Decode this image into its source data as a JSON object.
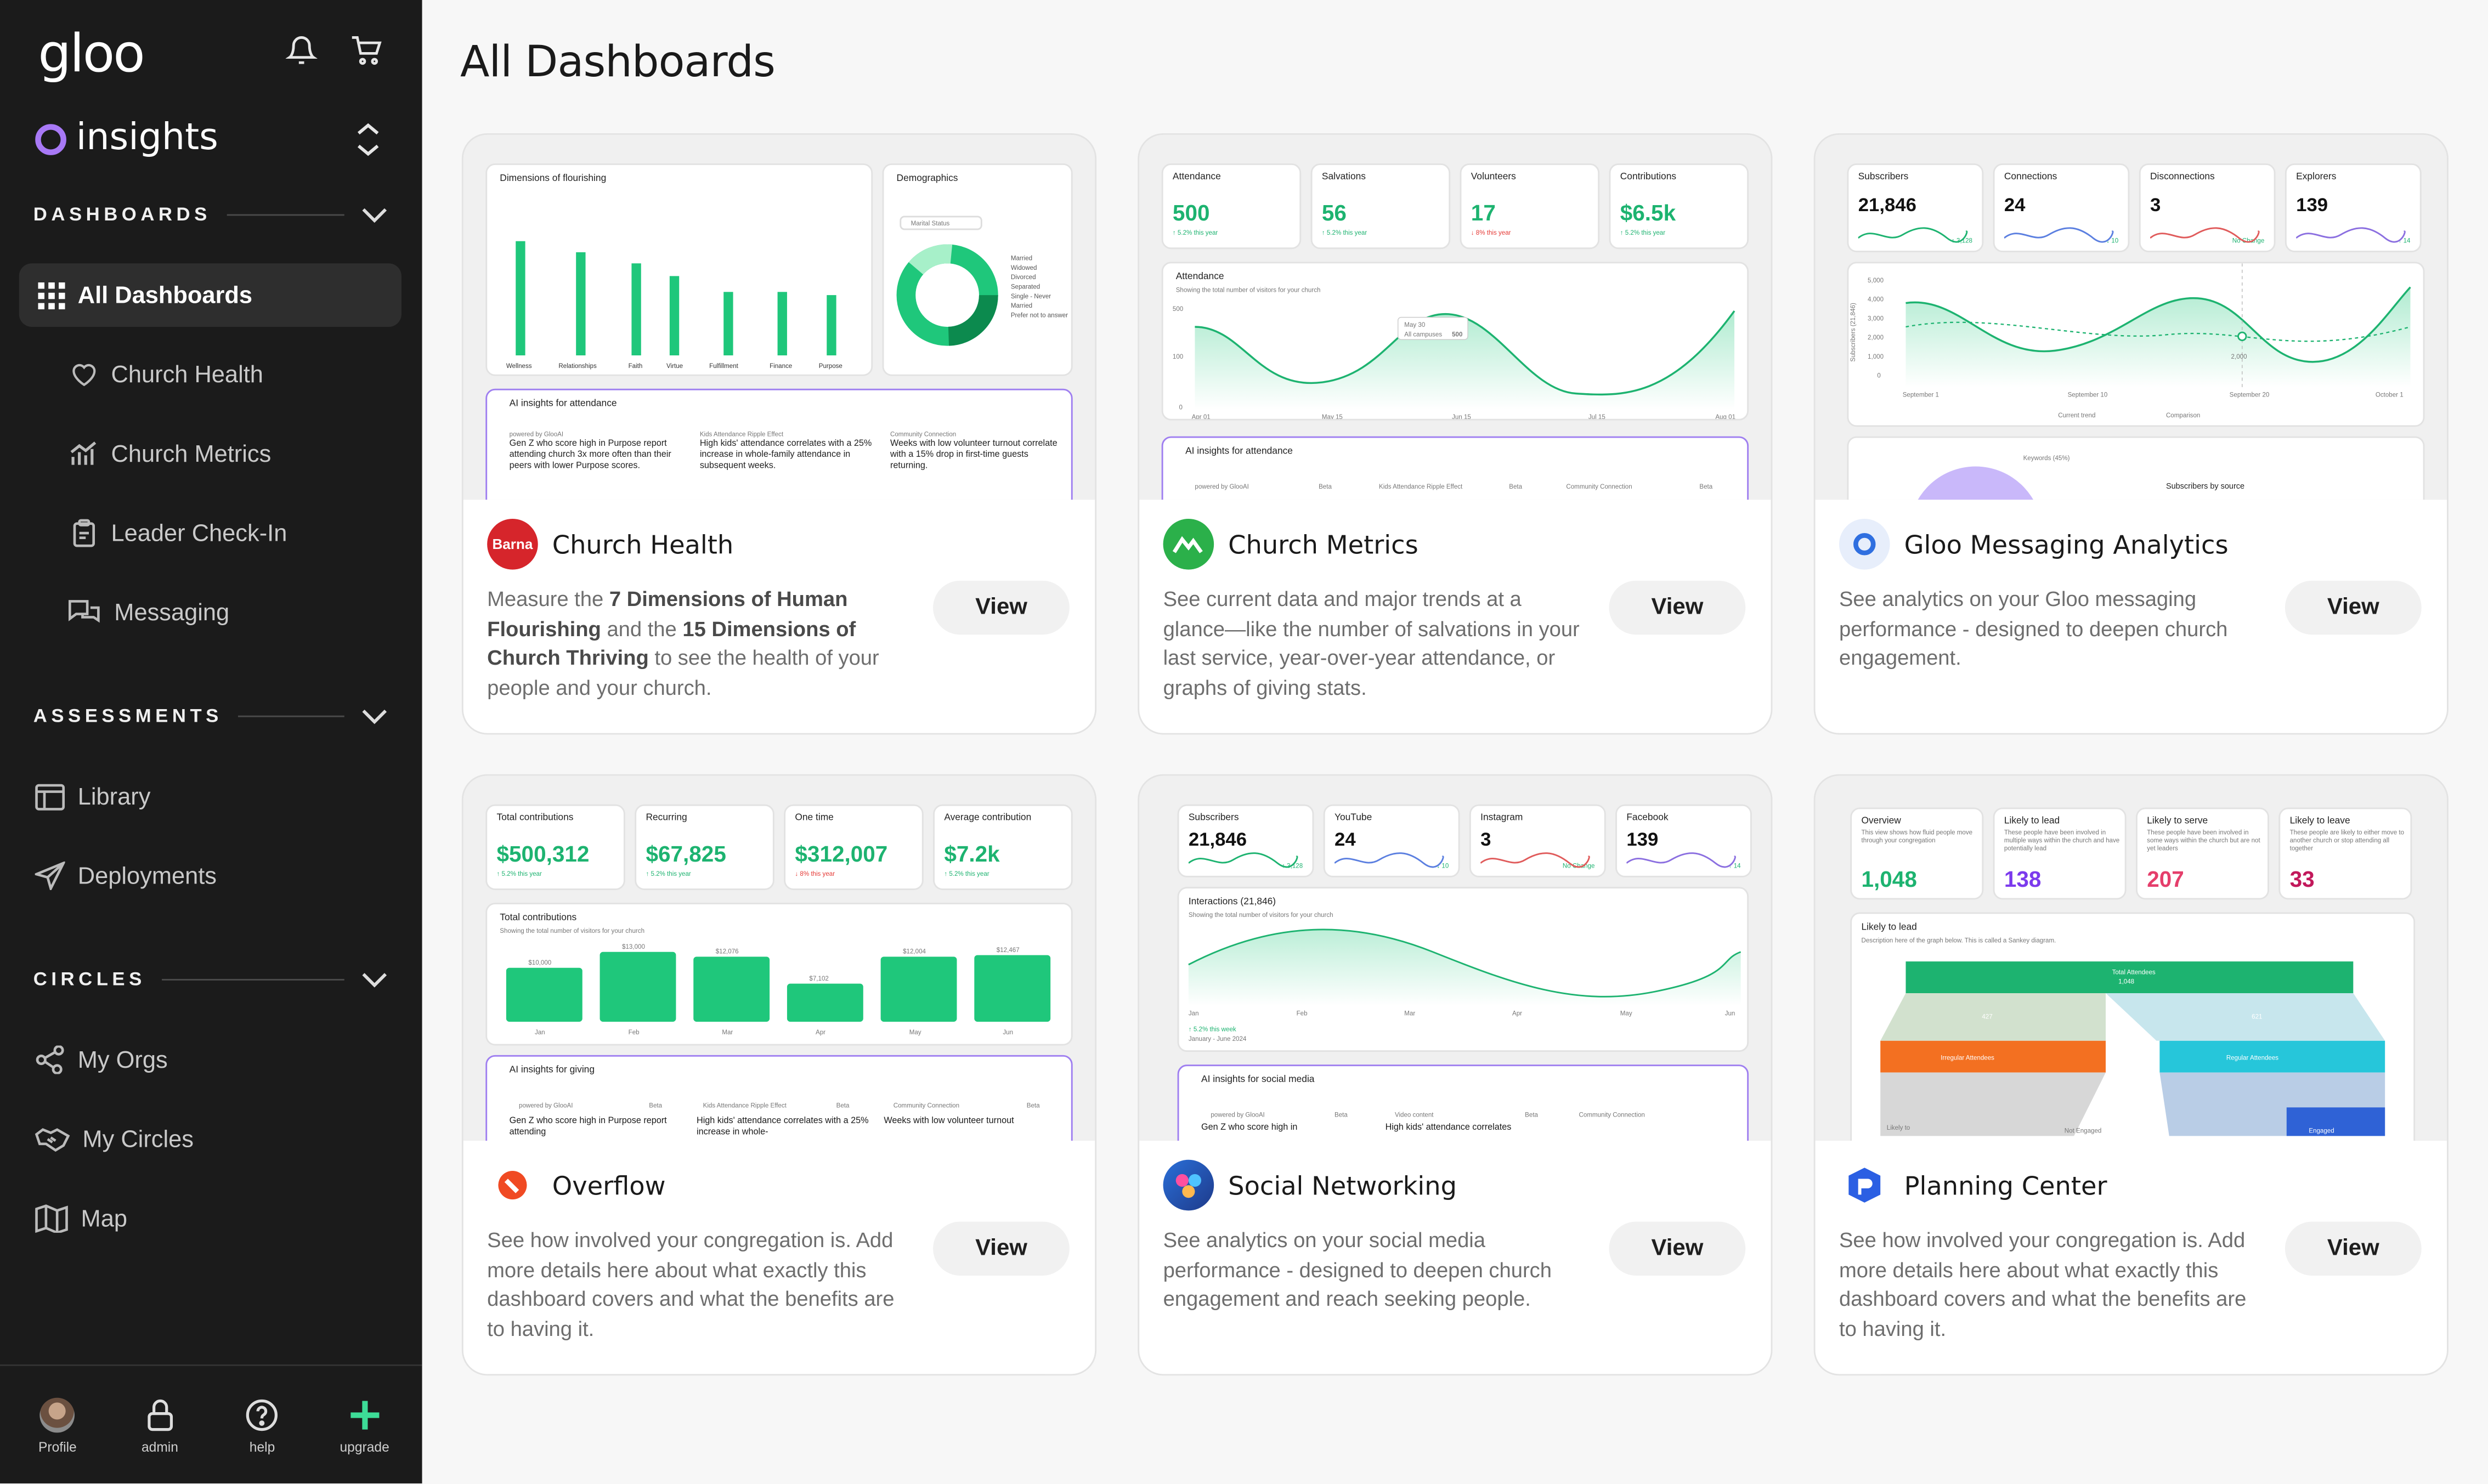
{
  "brand": {
    "logo": "gloo",
    "product": "insights"
  },
  "sidebar": {
    "sections": {
      "dashboards": "DASHBOARDS",
      "assessments": "ASSESSMENTS",
      "circles": "CIRCLES"
    },
    "dashboards": [
      "All Dashboards",
      "Church Health",
      "Church Metrics",
      "Leader Check-In",
      "Messaging"
    ],
    "assessments": [
      "Library",
      "Deployments"
    ],
    "circles": [
      "My Orgs",
      "My Circles",
      "Map"
    ],
    "footer": [
      "Profile",
      "admin",
      "help",
      "upgrade"
    ]
  },
  "page": {
    "title": "All Dashboards"
  },
  "cards": [
    {
      "name": "Church Health",
      "icon_text": "Barna",
      "button": "View",
      "desc": [
        "Measure the ",
        "7 Dimensions of Human Flourishing",
        " and the ",
        "15 Dimensions of Church Thriving",
        " to see the health of your people and your church."
      ]
    },
    {
      "name": "Church Metrics",
      "button": "View",
      "desc": "See current data and major trends at a glance—like the number of salvations in your last service, year-over-year attendance, or graphs of giving stats."
    },
    {
      "name": "Gloo Messaging Analytics",
      "button": "View",
      "desc": "See analytics on your Gloo messaging performance - designed to deepen church engagement."
    },
    {
      "name": "Overflow",
      "button": "View",
      "desc": "See how involved your congregation is. Add more details here about what exactly this dashboard covers and what the benefits are to having it."
    },
    {
      "name": "Social Networking",
      "button": "View",
      "desc": "See analytics on your social media performance - designed to deepen church engagement and reach seeking people."
    },
    {
      "name": "Planning Center",
      "button": "View",
      "desc": "See how involved your congregation is. Add more details here about what exactly this dashboard covers and what the benefits are to having it."
    }
  ],
  "previews": {
    "flourishing": {
      "title": "Dimensions of flourishing",
      "demographics": "Demographics",
      "marital": "Marital Status",
      "legend": [
        "Married",
        "Widowed",
        "Divorced",
        "Separated",
        "Single - Never Married",
        "Prefer not to answer"
      ],
      "ai_title": "AI insights for attendance",
      "ai_items": [
        {
          "label": "powered by GlooAI",
          "badge": "Beta",
          "text": "Gen Z who score high in Purpose report attending church 3x more often than their peers with lower Purpose scores."
        },
        {
          "label": "Kids Attendance Ripple Effect",
          "badge": "Beta",
          "text": "High kids' attendance correlates with a 25% increase in whole-family attendance in subsequent weeks."
        },
        {
          "label": "Community Connection",
          "badge": "Beta",
          "text": "Weeks with low volunteer turnout correlate with a 15% drop in first-time guests returning."
        }
      ]
    },
    "metrics": {
      "kpis": [
        {
          "label": "Attendance",
          "value": "500",
          "change": "↑ 5.2% this year"
        },
        {
          "label": "Salvations",
          "value": "56",
          "change": "↑ 5.2% this year"
        },
        {
          "label": "Volunteers",
          "value": "17",
          "change": "↓ 8% this year"
        },
        {
          "label": "Contributions",
          "value": "$6.5k",
          "change": "↑ 5.2% this year"
        }
      ],
      "chart_title": "Attendance",
      "chart_sub": "Showing the total number of visitors for your church",
      "tooltip_date": "May 30",
      "tooltip_label": "All campuses",
      "tooltip_value": "500",
      "x_labels": [
        "Apr 01",
        "May 15",
        "Jun 15",
        "Jul 15",
        "Aug 01"
      ],
      "y_labels": [
        "500",
        "100",
        "0"
      ],
      "ai_title": "AI insights for attendance",
      "ai_labels": [
        "powered by GlooAI",
        "Beta",
        "Kids Attendance Ripple Effect",
        "Beta",
        "Community Connection",
        "Beta"
      ]
    },
    "messaging": {
      "kpis": [
        {
          "label": "Subscribers",
          "value": "21,846",
          "badge": "↑ 3,128"
        },
        {
          "label": "Connections",
          "value": "24",
          "badge": "↓ 10"
        },
        {
          "label": "Disconnections",
          "value": "3",
          "badge": "No Change"
        },
        {
          "label": "Explorers",
          "value": "139",
          "badge": "↑ 14"
        }
      ],
      "y_labels": [
        "5,000",
        "4,000",
        "3,000",
        "2,000",
        "1,000",
        "0"
      ],
      "y_title": "Subscribers (21,846)",
      "x_labels": [
        "September 1",
        "September 10",
        "September 20",
        "October 1"
      ],
      "point_label": "2,000",
      "legend": [
        "Current trend",
        "Comparison"
      ],
      "keywords": "Keywords (45%)",
      "source": "Subscribers by source"
    },
    "overflow": {
      "kpis": [
        {
          "label": "Total contributions",
          "value": "$500,312",
          "change": "↑ 5.2% this year"
        },
        {
          "label": "Recurring",
          "value": "$67,825",
          "change": "↑ 5.2% this year"
        },
        {
          "label": "One time",
          "value": "$312,007",
          "change": "↓ 8% this year"
        },
        {
          "label": "Average contribution",
          "value": "$7.2k",
          "change": "↑ 5.2% this year"
        }
      ],
      "chart_title": "Total contributions",
      "chart_sub": "Showing the total number of visitors for your church",
      "bars": [
        {
          "m": "Jan",
          "v": "$10,000"
        },
        {
          "m": "Feb",
          "v": "$13,000"
        },
        {
          "m": "Mar",
          "v": "$12,076"
        },
        {
          "m": "Apr",
          "v": "$7,102"
        },
        {
          "m": "May",
          "v": "$12,004"
        },
        {
          "m": "Jun",
          "v": "$12,467"
        }
      ],
      "ai_title": "AI insights for giving",
      "ai_labels": [
        "powered by GlooAI",
        "Beta",
        "Kids Attendance Ripple Effect",
        "Beta",
        "Community Connection",
        "Beta"
      ],
      "ai_texts": [
        "Gen Z who score high in Purpose report attending",
        "High kids' attendance correlates with a 25% increase in whole-",
        "Weeks with low volunteer turnout"
      ]
    },
    "social": {
      "kpis": [
        {
          "label": "Subscribers",
          "value": "21,846",
          "badge": "↑ 3,128"
        },
        {
          "label": "YouTube",
          "value": "24",
          "badge": "↓ 10"
        },
        {
          "label": "Instagram",
          "value": "3",
          "badge": "No Change"
        },
        {
          "label": "Facebook",
          "value": "139",
          "badge": "↑ 14"
        }
      ],
      "chart_title": "Interactions (21,846)",
      "chart_sub": "Showing the total number of visitors for your church",
      "x_labels": [
        "Jan",
        "Feb",
        "Mar",
        "Apr",
        "May",
        "Jun"
      ],
      "note": "↑ 5.2% this week",
      "note2": "January - June 2024",
      "ai_title": "AI insights for social media",
      "ai_labels": [
        "powered by GlooAI",
        "Beta",
        "Video content",
        "Beta",
        "Community Connection"
      ],
      "ai_texts": [
        "Gen Z who score high in",
        "High kids' attendance correlates"
      ]
    },
    "planning": {
      "kpis": [
        {
          "label": "Overview",
          "value": "1,048",
          "sub": "This view shows how fluid people move through your congregation",
          "color": "#1db370"
        },
        {
          "label": "Likely to lead",
          "value": "138",
          "sub": "These people have been involved in multiple ways within the church and have potentially lead",
          "color": "#7c3aed"
        },
        {
          "label": "Likely to serve",
          "value": "207",
          "sub": "These people have been involved in some ways within the church but are not yet leaders",
          "color": "#e53e6b"
        },
        {
          "label": "Likely to leave",
          "value": "33",
          "sub": "These people are likely to either move to another church or stop attending all together",
          "color": "#c2185b"
        }
      ],
      "chart_title": "Likely to lead",
      "chart_sub": "Description here of the graph below. This is called a Sankey diagram.",
      "nodes": [
        "Total Attendees",
        "1,048",
        "Irregular Attendees",
        "Regular Attendees",
        "427",
        "621",
        "Likely to",
        "Not Engaged",
        "Engaged"
      ]
    }
  }
}
